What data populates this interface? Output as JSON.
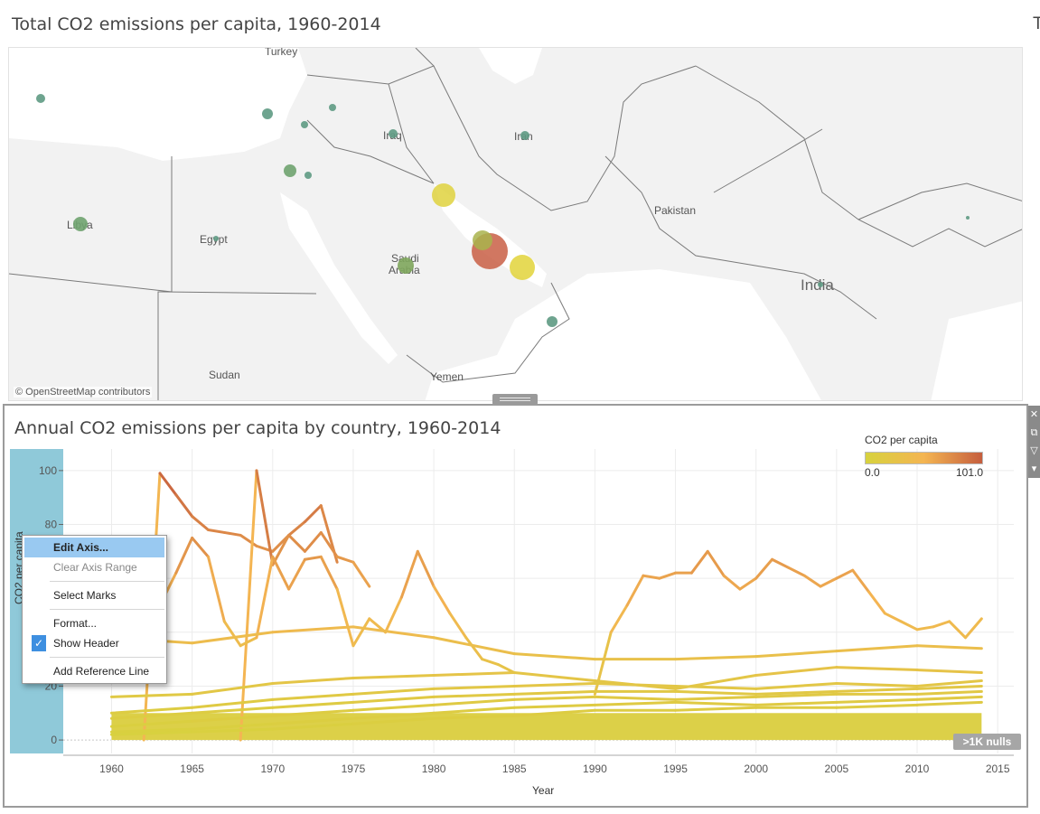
{
  "map": {
    "title": "Total CO2 emissions per capita, 1960-2014",
    "title_cut": "T",
    "credit": "© OpenStreetMap contributors",
    "labels": [
      "Turkey",
      "Iraq",
      "Iran",
      "Libya",
      "Egypt",
      "Pakistan",
      "Saudi",
      "Arabia",
      "India",
      "Sudan",
      "Yemen"
    ]
  },
  "chart": {
    "title": "Annual CO2 emissions per capita by country, 1960-2014",
    "xlabel": "Year",
    "ylabel": "CO2 per capita",
    "nulls_badge": ">1K nulls",
    "legend": {
      "title": "CO2 per capita",
      "min": "0.0",
      "max": "101.0"
    }
  },
  "chart_data": {
    "type": "line",
    "title": "Annual CO2 emissions per capita by country, 1960-2014",
    "xlabel": "Year",
    "ylabel": "CO2 per capita",
    "xlim": [
      1957,
      2016
    ],
    "ylim": [
      -5,
      108
    ],
    "x_ticks": [
      1960,
      1965,
      1970,
      1975,
      1980,
      1985,
      1990,
      1995,
      2000,
      2005,
      2010,
      2015
    ],
    "y_ticks": [
      0,
      20,
      40,
      60,
      80,
      100
    ],
    "color_scale": {
      "min": 0.0,
      "max": 101.0,
      "colors": [
        "#d7d23e",
        "#f4b552",
        "#c55e3e"
      ]
    },
    "series": [
      {
        "x": [
          1962,
          1963,
          1964,
          1965,
          1966,
          1967,
          1968,
          1969,
          1970,
          1971,
          1972,
          1973,
          1974
        ],
        "y": [
          0,
          99,
          91,
          83,
          78,
          77,
          76,
          72,
          70,
          76,
          81,
          87,
          66
        ]
      },
      {
        "x": [
          1968,
          1969,
          1970,
          1971,
          1972,
          1973,
          1974,
          1975,
          1976
        ],
        "y": [
          0,
          100,
          65,
          76,
          70,
          77,
          68,
          66,
          57
        ]
      },
      {
        "x": [
          1962,
          1963,
          1964,
          1965,
          1966,
          1967,
          1968,
          1969,
          1970,
          1971,
          1972,
          1973,
          1974,
          1975,
          1976,
          1977,
          1978,
          1979,
          1980,
          1981,
          1982,
          1983,
          1984,
          1985
        ],
        "y": [
          28,
          50,
          62,
          75,
          68,
          44,
          35,
          38,
          68,
          56,
          67,
          68,
          56,
          35,
          45,
          40,
          53,
          70,
          57,
          47,
          38,
          30,
          28,
          25
        ]
      },
      {
        "x": [
          1990,
          1991,
          1992,
          1993,
          1994,
          1995,
          1996,
          1997,
          1998,
          1999,
          2000,
          2001,
          2002,
          2003,
          2004,
          2005,
          2006,
          2007,
          2008,
          2009,
          2010,
          2011,
          2012,
          2013,
          2014
        ],
        "y": [
          17,
          40,
          50,
          61,
          60,
          62,
          62,
          70,
          61,
          56,
          60,
          67,
          64,
          61,
          57,
          60,
          63,
          55,
          47,
          44,
          41,
          42,
          44,
          38,
          45
        ]
      },
      {
        "x": [
          1960,
          1965,
          1970,
          1975,
          1980,
          1985,
          1990,
          1995,
          2000,
          2005,
          2010,
          2014
        ],
        "y": [
          38,
          36,
          40,
          42,
          38,
          32,
          30,
          30,
          31,
          33,
          35,
          34
        ]
      },
      {
        "x": [
          1960,
          1965,
          1970,
          1975,
          1980,
          1985,
          1990,
          1995,
          2000,
          2005,
          2010,
          2014
        ],
        "y": [
          16,
          17,
          21,
          23,
          24,
          25,
          22,
          19,
          24,
          27,
          26,
          25
        ]
      },
      {
        "x": [
          1960,
          1965,
          1970,
          1975,
          1980,
          1985,
          1990,
          1995,
          2000,
          2005,
          2010,
          2014
        ],
        "y": [
          10,
          12,
          15,
          17,
          19,
          20,
          21,
          20,
          19,
          21,
          20,
          22
        ]
      },
      {
        "x": [
          1960,
          1965,
          1970,
          1975,
          1980,
          1985,
          1990,
          1995,
          2000,
          2005,
          2010,
          2014
        ],
        "y": [
          8,
          10,
          12,
          14,
          16,
          17,
          18,
          18,
          17,
          18,
          19,
          20
        ]
      },
      {
        "x": [
          1960,
          1965,
          1970,
          1975,
          1980,
          1985,
          1990,
          1995,
          2000,
          2005,
          2010,
          2014
        ],
        "y": [
          5,
          7,
          9,
          11,
          13,
          15,
          16,
          15,
          16,
          17,
          17,
          18
        ]
      },
      {
        "x": [
          1960,
          1965,
          1970,
          1975,
          1980,
          1985,
          1990,
          1995,
          2000,
          2005,
          2010,
          2014
        ],
        "y": [
          3,
          4,
          6,
          8,
          10,
          12,
          13,
          14,
          13,
          14,
          15,
          16
        ]
      },
      {
        "x": [
          1960,
          1965,
          1970,
          1975,
          1980,
          1985,
          1990,
          1995,
          2000,
          2005,
          2010,
          2014
        ],
        "y": [
          2,
          3,
          4,
          6,
          8,
          9,
          11,
          11,
          12,
          12,
          13,
          14
        ]
      }
    ]
  },
  "context_menu": {
    "items": [
      {
        "label": "Edit Axis...",
        "state": "highlight"
      },
      {
        "label": "Clear Axis Range",
        "state": "disabled"
      },
      {
        "label": "Select Marks",
        "state": "normal"
      },
      {
        "label": "Format...",
        "state": "normal"
      },
      {
        "label": "Show Header",
        "state": "checked"
      },
      {
        "label": "Add Reference Line",
        "state": "normal"
      }
    ]
  },
  "colors": {
    "axis_highlight": "#8fc9d9",
    "menu_highlight": "#99c9f1"
  }
}
